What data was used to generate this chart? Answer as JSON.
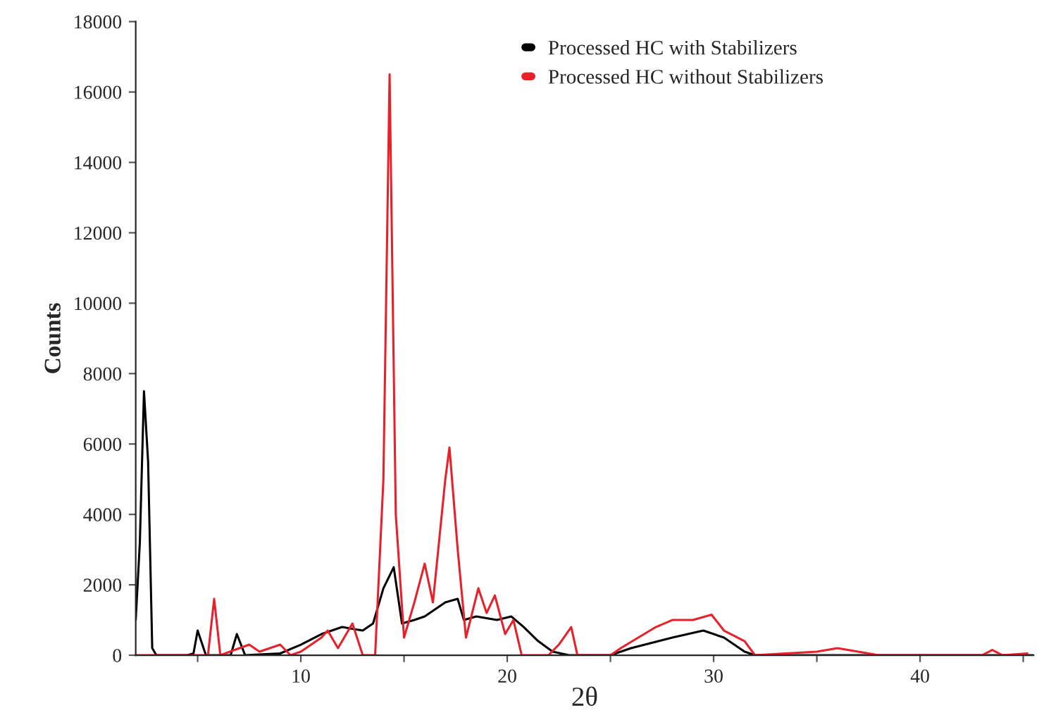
{
  "chart_data": {
    "type": "line",
    "xlabel": "2θ",
    "ylabel": "Counts",
    "xlim": [
      2,
      45.5
    ],
    "ylim": [
      0,
      18000
    ],
    "xticks": [
      {
        "value": 5,
        "label": null
      },
      10,
      {
        "value": 15,
        "label": null
      },
      20,
      {
        "value": 25,
        "label": null
      },
      30,
      {
        "value": 35,
        "label": null
      },
      40,
      {
        "value": 45,
        "label": null
      }
    ],
    "yticks": [
      0,
      2000,
      4000,
      6000,
      8000,
      10000,
      12000,
      14000,
      16000,
      18000
    ],
    "legend": "top",
    "grid": false,
    "series": [
      {
        "name": "Processed HC with Stabilizers",
        "color": "#000000",
        "x": [
          2.0,
          2.2,
          2.4,
          2.6,
          2.8,
          3.0,
          4.5,
          4.8,
          5.0,
          5.4,
          6.6,
          6.9,
          7.3,
          9,
          10,
          11,
          12,
          13,
          13.5,
          14.0,
          14.5,
          14.9,
          15.5,
          16,
          17,
          17.6,
          17.9,
          18.5,
          19.5,
          20.2,
          20.8,
          21.5,
          22.2,
          23,
          25,
          26,
          28,
          29.5,
          30.5,
          31.5,
          32,
          45.5
        ],
        "values": [
          1000,
          3200,
          7500,
          5500,
          200,
          0,
          0,
          50,
          700,
          0,
          0,
          600,
          0,
          50,
          300,
          600,
          800,
          700,
          900,
          1900,
          2500,
          900,
          1000,
          1100,
          1500,
          1600,
          1000,
          1100,
          1000,
          1100,
          800,
          400,
          100,
          0,
          0,
          200,
          500,
          700,
          500,
          100,
          0,
          0
        ]
      },
      {
        "name": "Processed HC without Stabilizers",
        "color": "#e8202a",
        "x": [
          2.0,
          5.5,
          5.8,
          6.1,
          7.5,
          8,
          9,
          9.5,
          10,
          10.5,
          11,
          11.3,
          11.8,
          12.5,
          13,
          13.6,
          14.0,
          14.3,
          14.6,
          15,
          15.5,
          16,
          16.4,
          17,
          17.2,
          17.6,
          18,
          18.6,
          19.0,
          19.4,
          19.9,
          20.3,
          20.7,
          22.0,
          22.5,
          23.1,
          23.4,
          25,
          25.5,
          27.2,
          28,
          29,
          29.9,
          30.5,
          31.5,
          32,
          35,
          36,
          37,
          38,
          43,
          43.5,
          44,
          45.2
        ],
        "values": [
          0,
          0,
          1600,
          0,
          300,
          100,
          300,
          0,
          100,
          300,
          500,
          700,
          200,
          900,
          0,
          0,
          5000,
          16500,
          4000,
          500,
          1500,
          2600,
          1500,
          5000,
          5900,
          3000,
          500,
          1900,
          1200,
          1700,
          600,
          1000,
          0,
          0,
          300,
          800,
          0,
          0,
          200,
          800,
          1000,
          1000,
          1150,
          700,
          400,
          0,
          100,
          200,
          100,
          0,
          0,
          150,
          0,
          50
        ]
      }
    ]
  }
}
